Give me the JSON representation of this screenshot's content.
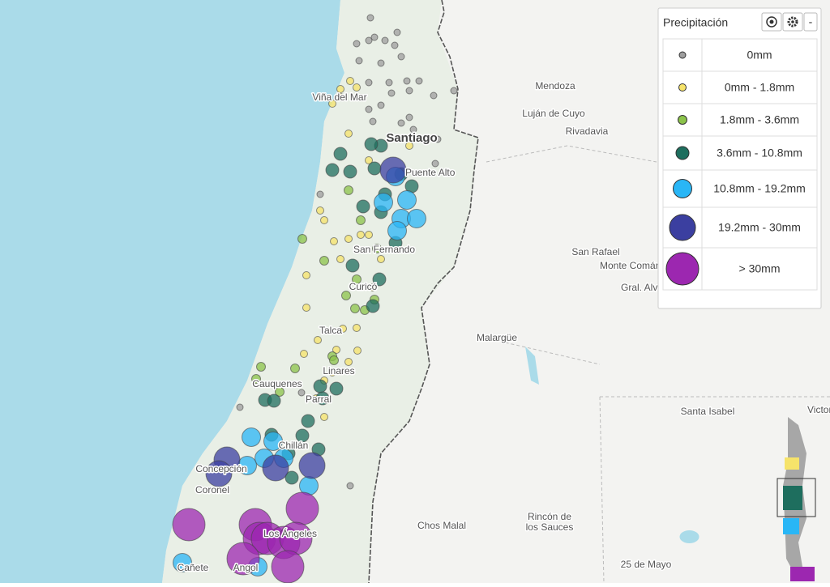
{
  "legend": {
    "title": "Precipitación",
    "collapse": "-",
    "rows": [
      {
        "label": "0mm",
        "color": "#9e9e9e"
      },
      {
        "label": "0mm - 1.8mm",
        "color": "#f6e36a"
      },
      {
        "label": "1.8mm - 3.6mm",
        "color": "#8bc34a"
      },
      {
        "label": "3.6mm - 10.8mm",
        "color": "#1e6e5e"
      },
      {
        "label": "10.8mm - 19.2mm",
        "color": "#29b6f6"
      },
      {
        "label": "19.2mm - 30mm",
        "color": "#3b3fa0"
      },
      {
        "label": "> 30mm",
        "color": "#9c27b0"
      }
    ]
  },
  "places": [
    "Mendoza",
    "Luján de Cuyo",
    "Rivadavia",
    "San Rafael",
    "Monte Comán",
    "Gral. Alvear",
    "Malargüe",
    "Santa Isabel",
    "Victorica",
    "Chos Malal",
    "Rincón de",
    "los Sauces",
    "25 de Mayo",
    "Viña del Mar",
    "Santiago",
    "Puente Alto",
    "San Fernando",
    "Curicó",
    "Talca",
    "Linares",
    "Cauquenes",
    "Parral",
    "Chillán",
    "Concepción",
    "Coronel",
    "Cañete",
    "Angol",
    "Los Ángeles"
  ]
}
